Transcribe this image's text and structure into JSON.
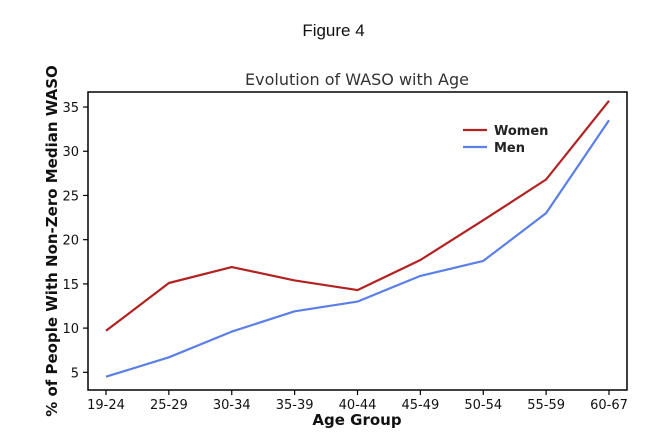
{
  "figure_label": "Figure 4",
  "chart_data": {
    "type": "line",
    "title": "Evolution of WASO with Age",
    "xlabel": "Age Group",
    "ylabel": "% of People With Non-Zero Median WASO",
    "categories": [
      "19-24",
      "25-29",
      "30-34",
      "35-39",
      "40-44",
      "45-49",
      "50-54",
      "55-59",
      "60-67"
    ],
    "ylim": [
      3,
      36.7
    ],
    "yticks": [
      5,
      10,
      15,
      20,
      25,
      30,
      35
    ],
    "grid": false,
    "legend_position": "top-right",
    "series": [
      {
        "name": "Women",
        "color": "#b22222",
        "values": [
          9.7,
          15.1,
          16.9,
          15.4,
          14.3,
          17.7,
          22.2,
          26.8,
          35.7
        ]
      },
      {
        "name": "Men",
        "color": "#5b7fe6",
        "values": [
          4.5,
          6.7,
          9.6,
          11.9,
          13.0,
          15.9,
          17.6,
          23.0,
          33.5
        ]
      }
    ]
  }
}
